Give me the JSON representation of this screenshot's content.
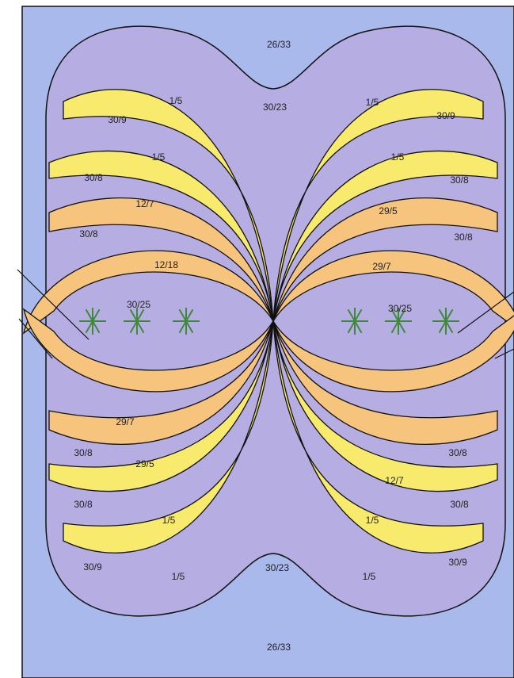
{
  "labels": [
    "26/33",
    "30/23",
    "1/5",
    "1/5",
    "30/9",
    "30/9",
    "1/5",
    "1/5",
    "30/8",
    "30/8",
    "12/7",
    "29/5",
    "30/8",
    "30/8",
    "12/18",
    "29/7",
    "30/25",
    "30/25",
    "29/7",
    "30/8",
    "30/8",
    "29/5",
    "12/7",
    "30/8",
    "30/8",
    "1/5",
    "1/5",
    "30/9",
    "30/9",
    "30/23",
    "1/5",
    "1/5",
    "26/33"
  ]
}
